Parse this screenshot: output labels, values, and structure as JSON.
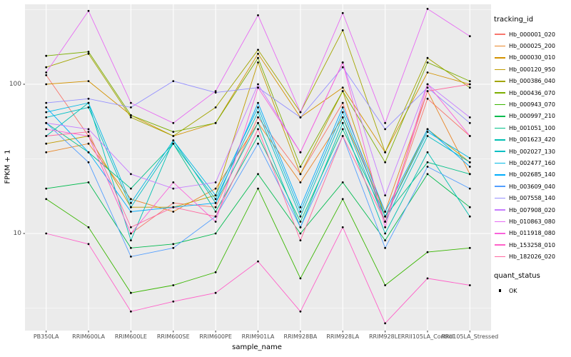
{
  "chart_data": {
    "type": "line",
    "title": "",
    "xlabel": "sample_name",
    "ylabel": "FPKM + 1",
    "y_scale": "log10",
    "y_tick_labels": [
      "100",
      "10"
    ],
    "y_tick_values": [
      100,
      10
    ],
    "ylim": [
      2.2,
      340
    ],
    "grid": true,
    "legend_position": "right",
    "panel_background": "#EBEBEB",
    "grid_color": "#FFFFFF",
    "point_color": "#000000",
    "axis_text_color": "#4D4D4D",
    "legend_title": "tracking_id",
    "quant_legend_title": "quant_status",
    "quant_legend_items": [
      "OK"
    ],
    "categories": [
      "PB350LA",
      "RRIM600LA",
      "RRIM600LE",
      "RRIM600SE",
      "RRIM600PE",
      "RRIM901LA",
      "RRIM928BA",
      "RRIM928LA",
      "RRIM928LE",
      "RRII105LA_Control",
      "RRII105LA_Stressed"
    ],
    "series": [
      {
        "name": "Hb_000001_020",
        "color": "#F8766D",
        "values": [
          115,
          45,
          10,
          16,
          15,
          60,
          25,
          75,
          12,
          80,
          45
        ]
      },
      {
        "name": "Hb_000025_200",
        "color": "#E88526",
        "values": [
          35,
          40,
          17,
          14,
          20,
          55,
          22,
          60,
          14,
          90,
          25
        ]
      },
      {
        "name": "Hb_000030_010",
        "color": "#D39200",
        "values": [
          100,
          105,
          62,
          45,
          55,
          160,
          60,
          95,
          35,
          120,
          100
        ]
      },
      {
        "name": "Hb_000120_950",
        "color": "#C09B00",
        "values": [
          40,
          45,
          15,
          15,
          18,
          140,
          25,
          90,
          13,
          50,
          30
        ]
      },
      {
        "name": "Hb_000386_040",
        "color": "#A3A500",
        "values": [
          130,
          160,
          60,
          45,
          70,
          170,
          65,
          230,
          35,
          150,
          95
        ]
      },
      {
        "name": "Hb_000436_070",
        "color": "#7CAE00",
        "values": [
          155,
          165,
          62,
          48,
          55,
          150,
          28,
          90,
          30,
          140,
          105
        ]
      },
      {
        "name": "Hb_000943_070",
        "color": "#39B600",
        "values": [
          17,
          11,
          4,
          4.5,
          5.5,
          20,
          5,
          17,
          4.5,
          7.5,
          8
        ]
      },
      {
        "name": "Hb_000997_210",
        "color": "#00BB4E",
        "values": [
          20,
          22,
          8,
          8.5,
          10,
          25,
          10,
          22,
          9,
          25,
          15
        ]
      },
      {
        "name": "Hb_001051_100",
        "color": "#00C087",
        "values": [
          55,
          35,
          20,
          40,
          14,
          45,
          12,
          50,
          13,
          30,
          25
        ]
      },
      {
        "name": "Hb_001623_420",
        "color": "#00C0B2",
        "values": [
          45,
          75,
          9,
          42,
          16,
          55,
          11,
          55,
          10,
          35,
          13
        ]
      },
      {
        "name": "Hb_002027_130",
        "color": "#00BFC4",
        "values": [
          60,
          70,
          15,
          40,
          17,
          65,
          13,
          60,
          12,
          45,
          30
        ]
      },
      {
        "name": "Hb_002477_160",
        "color": "#00B8E5",
        "values": [
          65,
          75,
          16,
          42,
          18,
          70,
          14,
          65,
          13,
          48,
          32
        ]
      },
      {
        "name": "Hb_002685_140",
        "color": "#00ACFC",
        "values": [
          70,
          35,
          14,
          15,
          16,
          75,
          15,
          70,
          14,
          50,
          28
        ]
      },
      {
        "name": "Hb_003609_040",
        "color": "#529EFF",
        "values": [
          55,
          30,
          7,
          8,
          13,
          40,
          11,
          45,
          8,
          28,
          20
        ]
      },
      {
        "name": "Hb_007558_140",
        "color": "#9590FF",
        "values": [
          75,
          80,
          70,
          105,
          88,
          95,
          60,
          130,
          50,
          95,
          55
        ]
      },
      {
        "name": "Hb_007908_020",
        "color": "#C77CFF",
        "values": [
          55,
          50,
          25,
          20,
          22,
          100,
          35,
          140,
          18,
          100,
          60
        ]
      },
      {
        "name": "Hb_010863_080",
        "color": "#E76BF3",
        "values": [
          120,
          310,
          75,
          55,
          90,
          290,
          65,
          300,
          55,
          320,
          210
        ]
      },
      {
        "name": "Hb_011918_080",
        "color": "#FA62DB",
        "values": [
          50,
          45,
          10,
          22,
          12,
          95,
          35,
          140,
          11,
          100,
          45
        ]
      },
      {
        "name": "Hb_153258_010",
        "color": "#FF61C9",
        "values": [
          10,
          8.5,
          3,
          3.5,
          4,
          6.5,
          3,
          11,
          2.5,
          5,
          4.5
        ]
      },
      {
        "name": "Hb_182026_020",
        "color": "#FF689F",
        "values": [
          45,
          48,
          11,
          15,
          13,
          50,
          9,
          45,
          12,
          90,
          100
        ]
      }
    ]
  }
}
